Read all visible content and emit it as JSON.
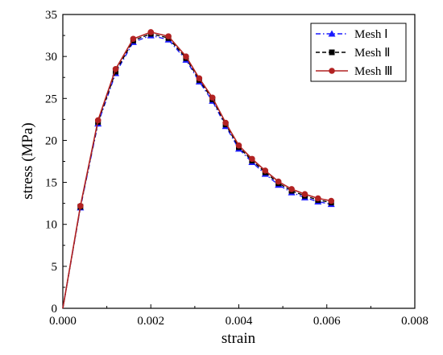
{
  "chart_data": {
    "type": "line",
    "title": "",
    "xlabel": "strain",
    "ylabel": "stress (MPa)",
    "xlim": [
      0,
      0.008
    ],
    "ylim": [
      0,
      35
    ],
    "x_ticks": [
      "0.000",
      "0.002",
      "0.004",
      "0.006",
      "0.008"
    ],
    "y_ticks": [
      "0",
      "5",
      "10",
      "15",
      "20",
      "25",
      "30",
      "35"
    ],
    "grid": false,
    "legend_position": "top-right",
    "series": [
      {
        "name": "Mesh Ⅰ",
        "color": "#1a1aff",
        "line_style": "dash-dot",
        "marker": "triangle",
        "x": [
          0,
          0.0004,
          0.0008,
          0.0012,
          0.0016,
          0.002,
          0.0024,
          0.0028,
          0.0031,
          0.0034,
          0.0037,
          0.004,
          0.0043,
          0.0046,
          0.0049,
          0.0052,
          0.0055,
          0.0058,
          0.0061
        ],
        "y": [
          0,
          12.0,
          22.0,
          28.0,
          31.7,
          32.5,
          32.0,
          29.6,
          27.0,
          24.7,
          21.7,
          19.0,
          17.4,
          16.0,
          14.7,
          13.8,
          13.2,
          12.7,
          12.4
        ]
      },
      {
        "name": "Mesh Ⅱ",
        "color": "#000000",
        "line_style": "dashed",
        "marker": "square",
        "x": [
          0,
          0.0004,
          0.0008,
          0.0012,
          0.0016,
          0.002,
          0.0024,
          0.0028,
          0.0031,
          0.0034,
          0.0037,
          0.004,
          0.0043,
          0.0046,
          0.0049,
          0.0052,
          0.0055,
          0.0058,
          0.0061
        ],
        "y": [
          0,
          12.1,
          22.2,
          28.2,
          31.9,
          32.7,
          32.2,
          29.8,
          27.2,
          24.9,
          21.9,
          19.2,
          17.6,
          16.2,
          14.9,
          14.0,
          13.4,
          12.9,
          12.6
        ]
      },
      {
        "name": "Mesh Ⅲ",
        "color": "#b22222",
        "line_style": "solid",
        "marker": "circle",
        "x": [
          0,
          0.0004,
          0.0008,
          0.0012,
          0.0016,
          0.002,
          0.0024,
          0.0028,
          0.0031,
          0.0034,
          0.0037,
          0.004,
          0.0043,
          0.0046,
          0.0049,
          0.0052,
          0.0055,
          0.0058,
          0.0061
        ],
        "y": [
          0,
          12.2,
          22.4,
          28.5,
          32.1,
          32.9,
          32.4,
          30.0,
          27.4,
          25.1,
          22.1,
          19.4,
          17.8,
          16.4,
          15.1,
          14.2,
          13.6,
          13.1,
          12.8
        ]
      }
    ]
  }
}
